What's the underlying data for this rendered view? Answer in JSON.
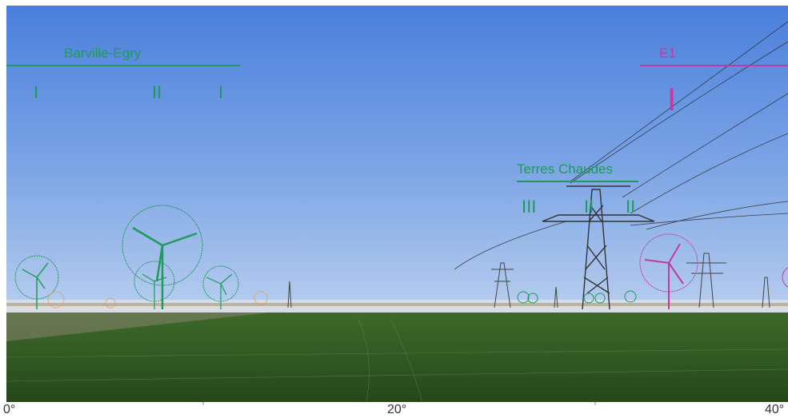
{
  "farms": [
    {
      "name": "Barville-Egry",
      "color": "#1e9a5a",
      "turbines": [
        "I",
        "II",
        "I"
      ]
    },
    {
      "name": "Terres Chaudes",
      "color": "#1e9a5a",
      "turbines": [
        "III",
        "II",
        "II"
      ]
    },
    {
      "name": "E1",
      "color": "#c23aa0",
      "turbines": [
        "I"
      ]
    }
  ],
  "scale": {
    "labels": [
      "0°",
      "20°",
      "40°"
    ],
    "color": "#333333"
  },
  "colors": {
    "sky_top": "#4a7fdc",
    "sky_bottom": "#a9c6ee",
    "horizon": "#d8dce0",
    "field": "#2f5a22",
    "field_dark": "#1f3f17",
    "tower": "#3a3a3a",
    "turbine_green": "#1e9a5a",
    "turbine_magenta": "#c23aa0"
  }
}
